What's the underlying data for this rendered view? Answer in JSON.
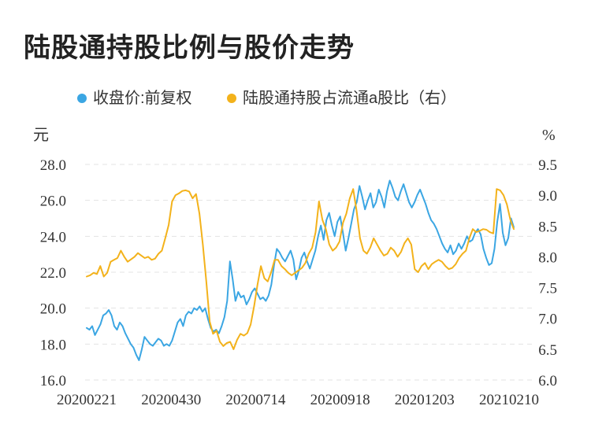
{
  "chart_data": {
    "type": "line",
    "title": "陆股通持股比例与股价走势",
    "left_axis_unit": "元",
    "right_axis_unit": "%",
    "left_ylim": [
      16.0,
      28.0
    ],
    "right_ylim": [
      6.0,
      9.5
    ],
    "left_ticks": [
      "16.0",
      "18.0",
      "20.0",
      "22.0",
      "24.0",
      "26.0",
      "28.0"
    ],
    "right_ticks": [
      "6.0",
      "6.5",
      "7.0",
      "7.5",
      "8.0",
      "8.5",
      "9.0",
      "9.5"
    ],
    "x_tick_labels": [
      "20200221",
      "20200430",
      "20200714",
      "20200918",
      "20201203",
      "20210210"
    ],
    "legend_position": "top-center",
    "grid": "horizontal dashed",
    "series": [
      {
        "name": "收盘价:前复权",
        "axis": "left",
        "color": "#3ba6e3",
        "values": [
          18.9,
          18.8,
          19.0,
          18.5,
          18.8,
          19.1,
          19.6,
          19.7,
          19.9,
          19.6,
          19.0,
          18.8,
          19.2,
          19.0,
          18.6,
          18.3,
          18.0,
          17.8,
          17.4,
          17.1,
          17.7,
          18.4,
          18.2,
          18.0,
          17.9,
          18.1,
          18.3,
          18.2,
          17.9,
          18.0,
          17.9,
          18.2,
          18.7,
          19.2,
          19.4,
          19.0,
          19.6,
          19.8,
          19.7,
          20.0,
          19.9,
          20.1,
          19.8,
          20.0,
          19.4,
          18.9,
          18.7,
          18.8,
          18.6,
          19.0,
          19.5,
          20.4,
          22.6,
          21.6,
          20.4,
          20.9,
          20.6,
          20.7,
          20.2,
          20.5,
          20.9,
          21.1,
          20.8,
          20.5,
          20.6,
          20.4,
          20.7,
          21.3,
          22.4,
          23.3,
          23.1,
          22.8,
          22.6,
          22.9,
          23.2,
          22.7,
          21.6,
          22.1,
          22.8,
          23.1,
          22.6,
          22.2,
          22.7,
          23.2,
          24.0,
          24.6,
          23.8,
          24.9,
          25.3,
          24.6,
          24.0,
          24.8,
          25.1,
          24.2,
          23.2,
          23.9,
          24.7,
          25.5,
          25.9,
          26.8,
          26.2,
          25.5,
          26.0,
          26.4,
          25.6,
          25.9,
          26.6,
          26.2,
          25.6,
          26.5,
          27.1,
          26.7,
          26.2,
          26.0,
          26.5,
          26.9,
          26.4,
          25.9,
          25.6,
          25.9,
          26.3,
          26.6,
          26.2,
          25.8,
          25.3,
          24.9,
          24.7,
          24.4,
          24.0,
          23.6,
          23.3,
          23.1,
          23.5,
          23.0,
          23.2,
          23.6,
          23.3,
          23.6,
          24.0,
          23.7,
          23.8,
          24.2,
          24.4,
          24.1,
          23.3,
          22.8,
          22.4,
          22.5,
          23.3,
          24.8,
          25.8,
          24.2,
          23.5,
          23.9,
          25.0,
          24.5
        ]
      },
      {
        "name": "陆股通持股占流通a股比（右）",
        "axis": "right",
        "color": "#f3b21b",
        "values": [
          7.68,
          7.7,
          7.74,
          7.72,
          7.85,
          7.68,
          7.74,
          7.92,
          7.95,
          7.98,
          8.1,
          8.0,
          7.92,
          7.96,
          8.0,
          8.06,
          8.02,
          7.98,
          8.0,
          7.95,
          7.97,
          8.05,
          8.1,
          8.3,
          8.52,
          8.9,
          9.0,
          9.03,
          9.07,
          9.08,
          9.06,
          8.95,
          9.02,
          8.7,
          8.2,
          7.6,
          6.95,
          6.75,
          6.8,
          6.62,
          6.55,
          6.6,
          6.62,
          6.5,
          6.65,
          6.75,
          6.72,
          6.76,
          6.9,
          7.2,
          7.55,
          7.85,
          7.65,
          7.6,
          7.75,
          7.95,
          7.95,
          7.85,
          7.8,
          7.74,
          7.7,
          7.74,
          7.78,
          7.82,
          7.9,
          8.05,
          8.15,
          8.4,
          8.9,
          8.6,
          8.45,
          8.2,
          8.1,
          8.15,
          8.25,
          8.55,
          8.7,
          8.95,
          9.1,
          8.75,
          8.3,
          8.1,
          8.05,
          8.15,
          8.3,
          8.2,
          8.1,
          8.02,
          8.05,
          8.15,
          8.1,
          8.0,
          8.08,
          8.22,
          8.3,
          8.2,
          7.8,
          7.75,
          7.85,
          7.9,
          7.8,
          7.88,
          7.92,
          7.95,
          7.92,
          7.85,
          7.8,
          7.82,
          7.88,
          7.98,
          8.05,
          8.1,
          8.3,
          8.45,
          8.4,
          8.42,
          8.45,
          8.44,
          8.4,
          8.38,
          9.1,
          9.08,
          9.0,
          8.85,
          8.6,
          8.45
        ]
      }
    ]
  }
}
